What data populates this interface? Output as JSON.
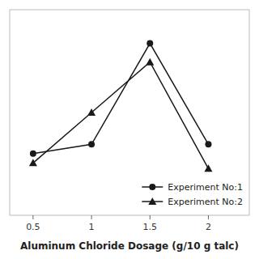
{
  "chart_data": {
    "type": "line",
    "x": [
      0.5,
      1.0,
      1.5,
      2.0
    ],
    "series": [
      {
        "name": "Experiment No:1",
        "color": "#1a1a1a",
        "marker": "circle",
        "values": [
          0.38,
          0.43,
          0.97,
          0.43
        ]
      },
      {
        "name": "Experiment No:2",
        "color": "#1a1a1a",
        "marker": "triangle",
        "values": [
          0.33,
          0.6,
          0.87,
          0.3
        ]
      }
    ],
    "xlabel": "Aluminum Chloride Dosage (g/10 g talc)",
    "xlim": [
      0.3,
      2.35
    ],
    "ylim": [
      0.05,
      1.15
    ],
    "xticks": [
      0.5,
      1,
      1.5,
      2
    ],
    "tick_labels": "x",
    "legend": "lower right"
  }
}
